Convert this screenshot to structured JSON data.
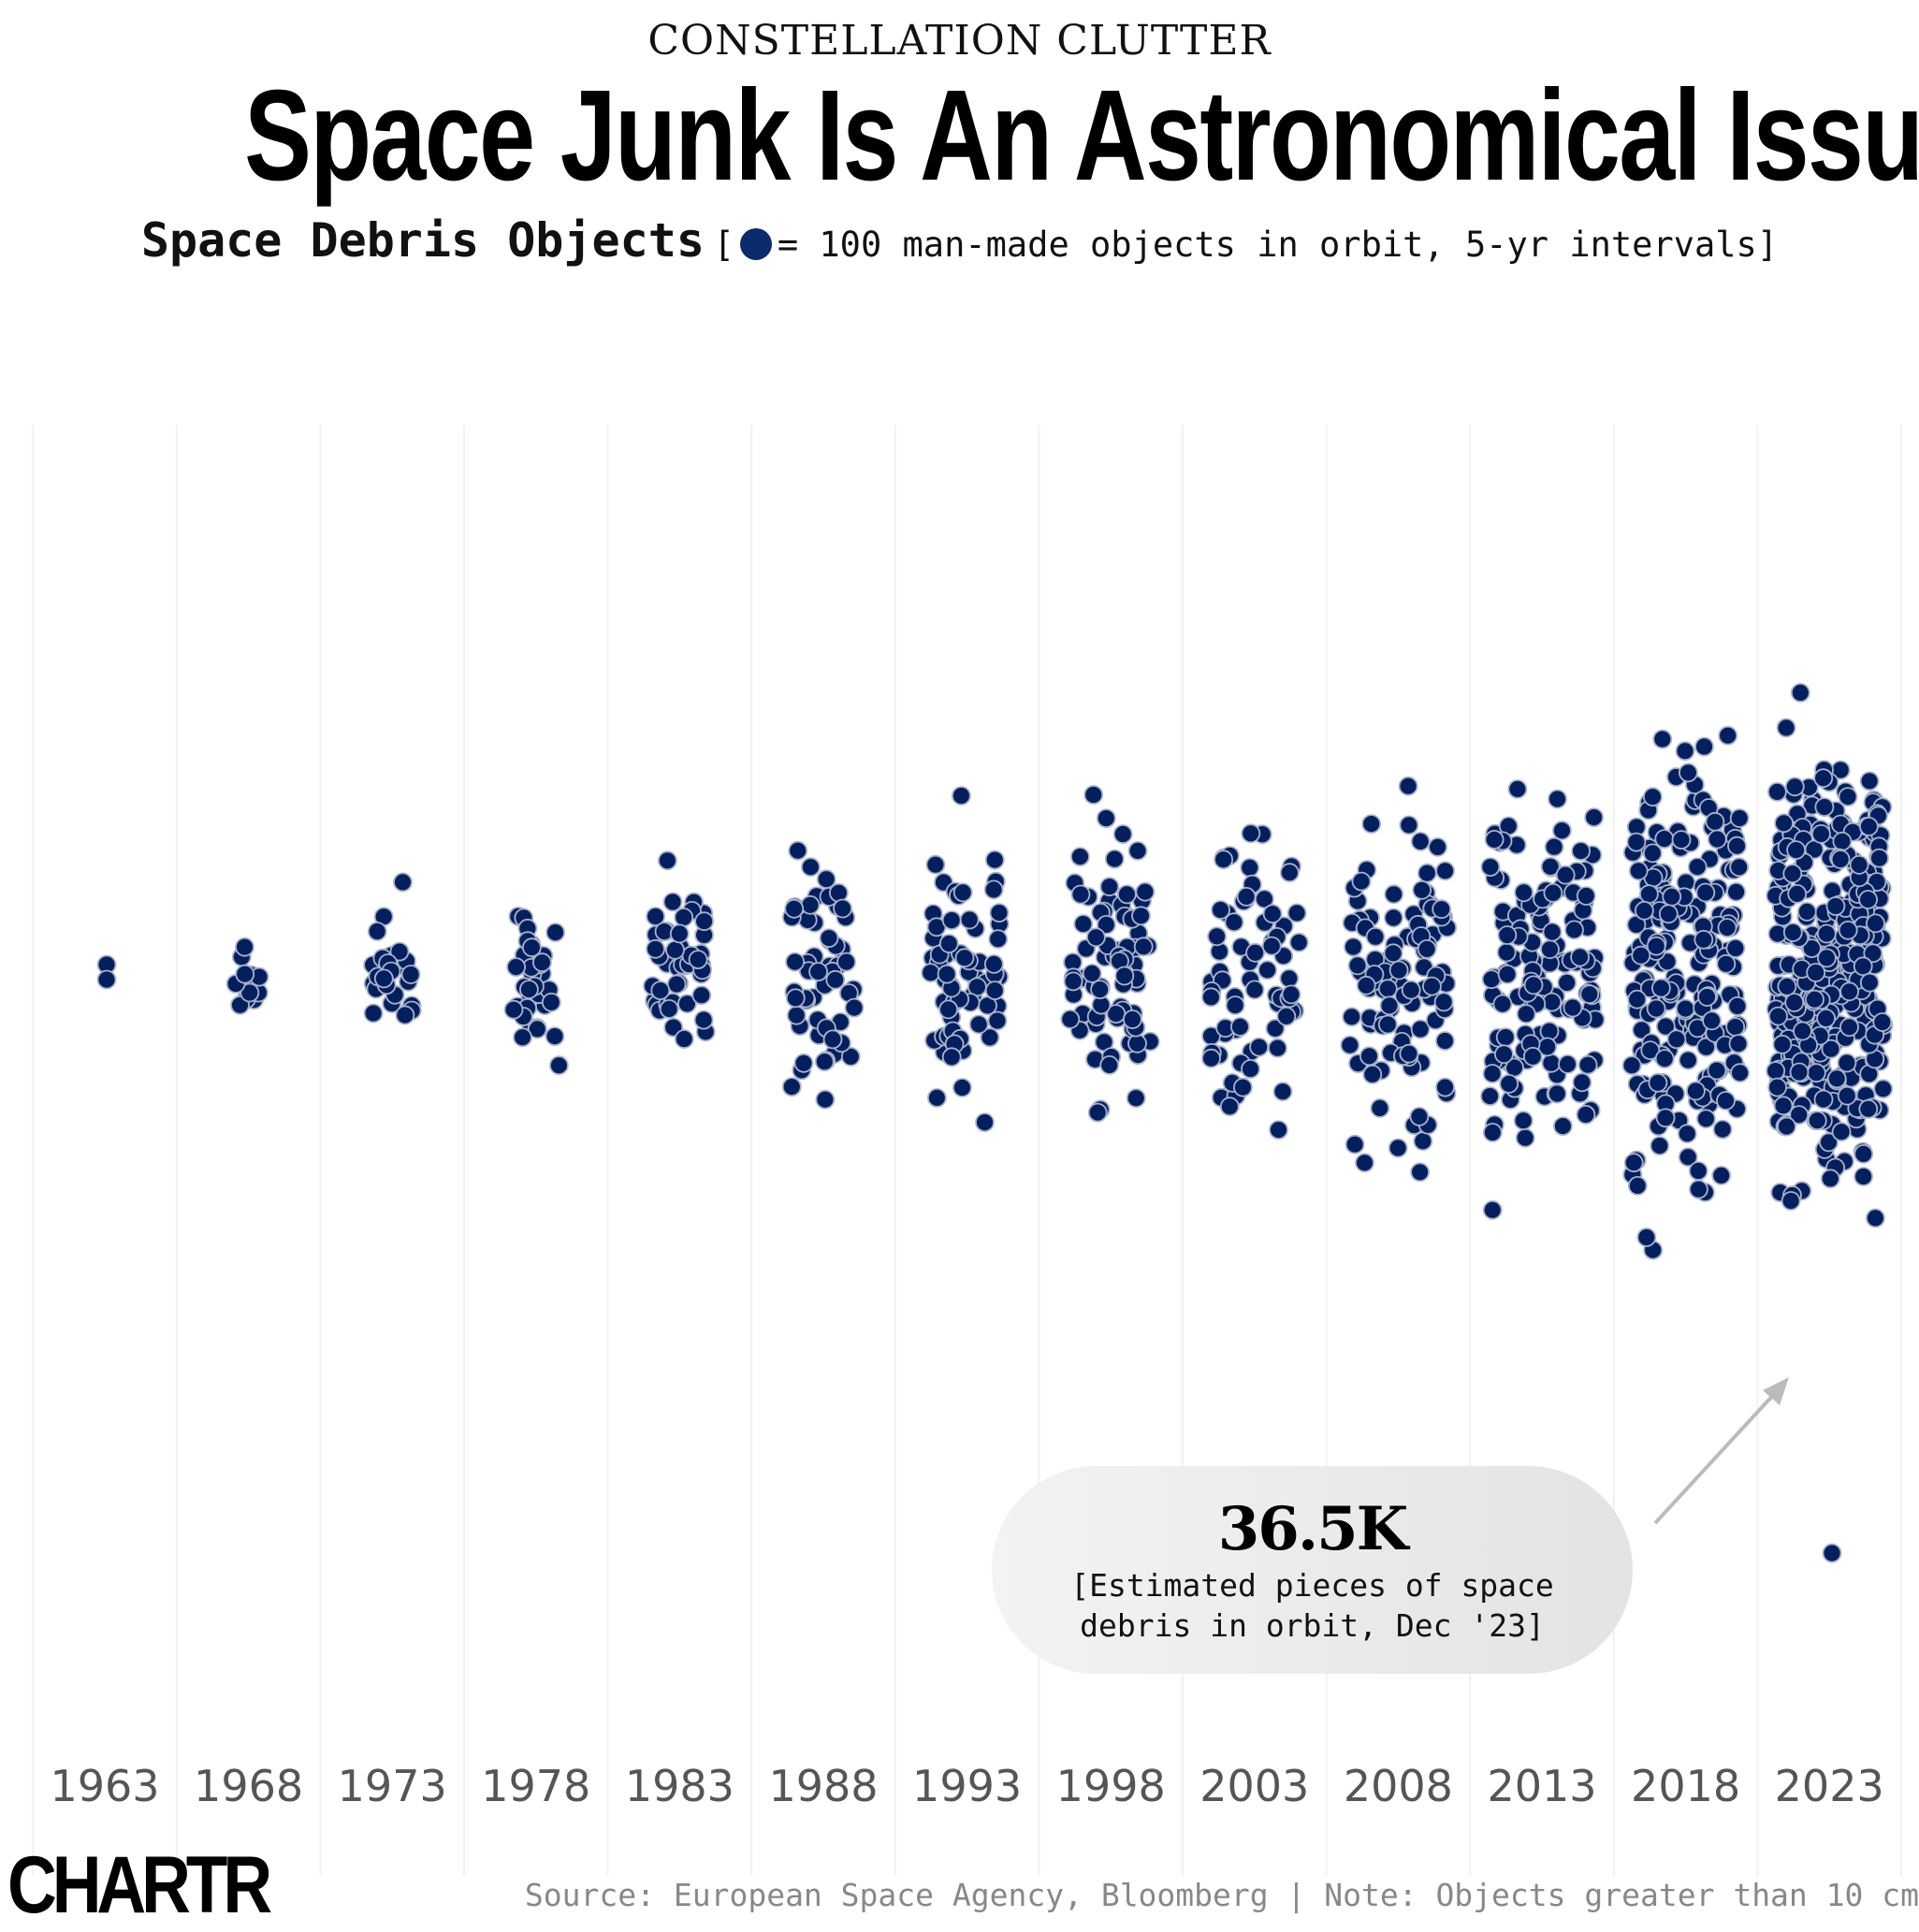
{
  "header": {
    "kicker": "CONSTELLATION CLUTTER",
    "title": "Space Junk Is An Astronomical Issue",
    "subtitle_bold": "Space Debris Objects",
    "subtitle_open": "[",
    "subtitle_rest": "= 100 man-made objects in orbit, 5-yr intervals]"
  },
  "colors": {
    "dot": "#041f5e",
    "dot_stroke": "#a9b3c9",
    "gridline": "#f2f2f2",
    "arrow": "#bbbbbb"
  },
  "chart_data": {
    "type": "scatter",
    "subtype": "beeswarm / unit dot chart",
    "unit_per_dot": 100,
    "categories": [
      "1963",
      "1968",
      "1973",
      "1978",
      "1983",
      "1988",
      "1993",
      "1998",
      "2003",
      "2008",
      "2013",
      "2018",
      "2023"
    ],
    "values": [
      200,
      1100,
      2600,
      3500,
      4500,
      5500,
      6500,
      8000,
      7000,
      11000,
      15000,
      22000,
      36500
    ],
    "title": "Space Debris Objects",
    "xlabel": "",
    "ylabel": "",
    "grid": "vertical lines between years"
  },
  "annotation": {
    "value": "36.5K",
    "text_line1": "[Estimated pieces of space",
    "text_line2": "debris in orbit, Dec '23]"
  },
  "footer": {
    "logo": "CHARTR",
    "source": "Source: European Space Agency, Bloomberg | Note: Objects greater than 10 cm"
  }
}
